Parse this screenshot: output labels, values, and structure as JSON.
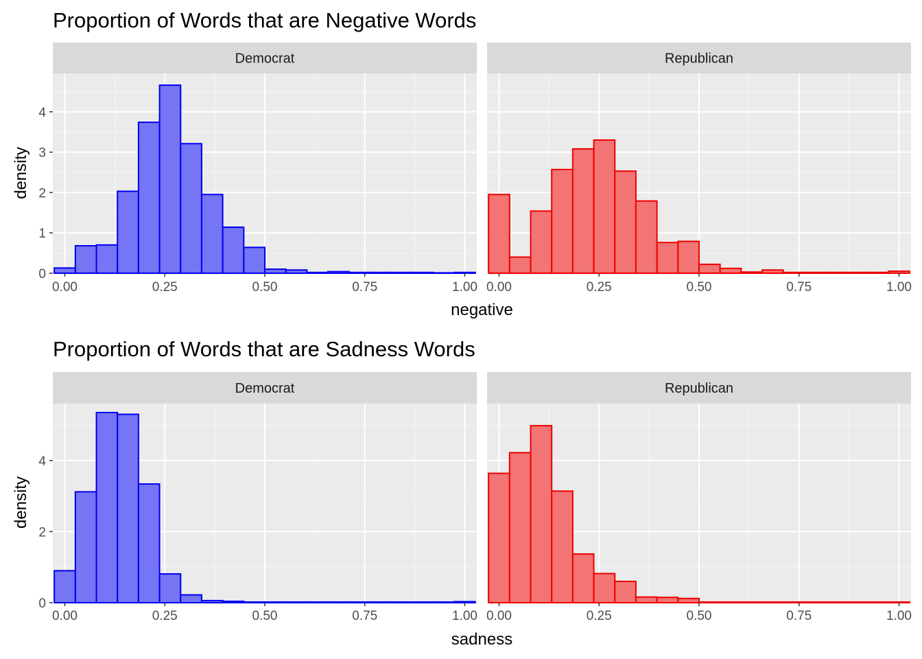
{
  "chart_data": [
    {
      "type": "bar",
      "title": "Proportion of Words that are Negative Words",
      "xlabel": "negative",
      "ylabel": "density",
      "xlim": [
        -0.03,
        1.03
      ],
      "ylim": [
        0,
        4.95
      ],
      "x_ticks": [
        "0.00",
        "0.25",
        "0.50",
        "0.75",
        "1.00"
      ],
      "x_tick_values": [
        0,
        0.25,
        0.5,
        0.75,
        1.0
      ],
      "y_ticks": [
        "0",
        "1",
        "2",
        "3",
        "4"
      ],
      "y_tick_values": [
        0,
        1,
        2,
        3,
        4
      ],
      "bin_width": 0.0526,
      "bin_centers": [
        0.0,
        0.0526,
        0.1053,
        0.1579,
        0.2105,
        0.2632,
        0.3158,
        0.3684,
        0.4211,
        0.4737,
        0.5263,
        0.5789,
        0.6316,
        0.6842,
        0.7368,
        0.7895,
        0.8421,
        0.8947,
        0.9474,
        1.0
      ],
      "grid": true,
      "legend": "none",
      "panels": [
        {
          "name": "Democrat",
          "fill": "#7575f5",
          "stroke": "#0000ee",
          "values": [
            0.13,
            0.68,
            0.7,
            2.03,
            3.74,
            4.66,
            3.21,
            1.95,
            1.14,
            0.64,
            0.1,
            0.08,
            0.02,
            0.04,
            0.02,
            0.02,
            0.02,
            0.02,
            0.01,
            0.02
          ]
        },
        {
          "name": "Republican",
          "fill": "#f27474",
          "stroke": "#ee0000",
          "values": [
            1.95,
            0.4,
            1.54,
            2.57,
            3.08,
            3.3,
            2.53,
            1.79,
            0.76,
            0.79,
            0.22,
            0.12,
            0.03,
            0.08,
            0.02,
            0.02,
            0.02,
            0.02,
            0.02,
            0.05
          ]
        }
      ]
    },
    {
      "type": "bar",
      "title": "Proportion of Words that are Sadness Words",
      "xlabel": "sadness",
      "ylabel": "density",
      "xlim": [
        -0.03,
        1.03
      ],
      "ylim": [
        0,
        5.6
      ],
      "x_ticks": [
        "0.00",
        "0.25",
        "0.50",
        "0.75",
        "1.00"
      ],
      "x_tick_values": [
        0,
        0.25,
        0.5,
        0.75,
        1.0
      ],
      "y_ticks": [
        "0",
        "2",
        "4"
      ],
      "y_tick_values": [
        0,
        2,
        4
      ],
      "bin_width": 0.0526,
      "bin_centers": [
        0.0,
        0.0526,
        0.1053,
        0.1579,
        0.2105,
        0.2632,
        0.3158,
        0.3684,
        0.4211,
        0.4737,
        0.5263,
        0.5789,
        0.6316,
        0.6842,
        0.7368,
        0.7895,
        0.8421,
        0.8947,
        0.9474,
        1.0
      ],
      "grid": true,
      "legend": "none",
      "panels": [
        {
          "name": "Democrat",
          "fill": "#7575f5",
          "stroke": "#0000ee",
          "values": [
            0.9,
            3.12,
            5.35,
            5.3,
            3.34,
            0.81,
            0.22,
            0.06,
            0.04,
            0.02,
            0.02,
            0.02,
            0.02,
            0.02,
            0.02,
            0.02,
            0.02,
            0.02,
            0.02,
            0.03
          ]
        },
        {
          "name": "Republican",
          "fill": "#f27474",
          "stroke": "#ee0000",
          "values": [
            3.64,
            4.22,
            4.98,
            3.14,
            1.37,
            0.82,
            0.6,
            0.16,
            0.15,
            0.12,
            0.02,
            0.02,
            0.02,
            0.02,
            0.02,
            0.02,
            0.02,
            0.02,
            0.02,
            0.02
          ]
        }
      ]
    }
  ]
}
